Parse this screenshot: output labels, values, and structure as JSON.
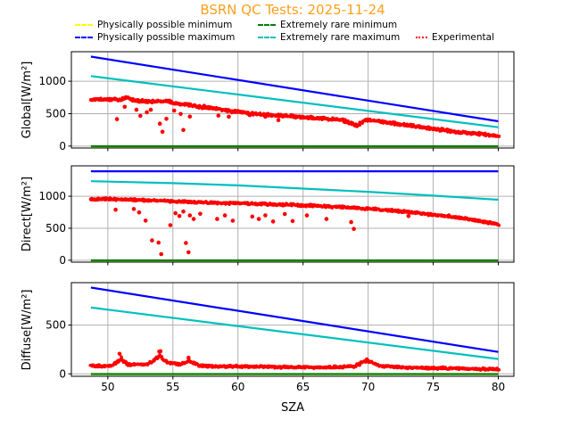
{
  "chart_data": {
    "type": "scatter",
    "title": "BSRN QC Tests: 2025-11-24",
    "title_color": "#ff9f1a",
    "xlabel": "SZA",
    "xlim": [
      47.2,
      81.2
    ],
    "xticks": [
      50,
      55,
      60,
      65,
      70,
      75,
      80
    ],
    "x_data_range": [
      48.7,
      80.0
    ],
    "grid": true,
    "grid_color": "#b0b0b0",
    "legend_position": "upper center, two rows, no frame",
    "legend": [
      {
        "label": "Physically possible minimum",
        "color": "#ffff00",
        "style": "dashed"
      },
      {
        "label": "Physically possible maximum",
        "color": "#0000ff",
        "style": "dashed"
      },
      {
        "label": "Extremely rare minimum",
        "color": "#008000",
        "style": "dashed"
      },
      {
        "label": "Extremely rare maximum",
        "color": "#00bfbf",
        "style": "dashed"
      },
      {
        "label": "Experimental",
        "color": "#ff0000",
        "style": "dotted"
      }
    ],
    "subplots": [
      {
        "name": "global",
        "ylabel": "Global[W/m²]",
        "ylim": [
          -30,
          1455
        ],
        "yticks": [
          0,
          500,
          1000
        ],
        "lines": {
          "physically_possible_minimum": {
            "color": "#ffff00",
            "points": [
              [
                48.7,
                -4
              ],
              [
                80,
                -4
              ]
            ]
          },
          "physically_possible_maximum": {
            "color": "#0000ff",
            "points": [
              [
                48.7,
                1380
              ],
              [
                80,
                382
              ]
            ]
          },
          "extremely_rare_maximum": {
            "color": "#00bfbf",
            "points": [
              [
                48.7,
                1080
              ],
              [
                80,
                290
              ]
            ]
          },
          "extremely_rare_minimum": {
            "color": "#008000",
            "points": [
              [
                48.7,
                -2
              ],
              [
                80,
                -2
              ]
            ]
          }
        },
        "experimental": {
          "color": "#ff0000",
          "band_halfwidth": 26,
          "midline": [
            [
              48.7,
              715
            ],
            [
              50,
              725
            ],
            [
              51,
              715
            ],
            [
              51.5,
              755
            ],
            [
              52,
              705
            ],
            [
              53,
              690
            ],
            [
              54,
              685
            ],
            [
              54.6,
              700
            ],
            [
              55,
              665
            ],
            [
              56,
              645
            ],
            [
              57,
              605
            ],
            [
              58,
              580
            ],
            [
              59,
              555
            ],
            [
              60,
              525
            ],
            [
              61,
              500
            ],
            [
              62,
              487
            ],
            [
              63,
              472
            ],
            [
              64,
              458
            ],
            [
              65,
              445
            ],
            [
              66,
              432
            ],
            [
              67,
              420
            ],
            [
              68,
              400
            ],
            [
              68.6,
              360
            ],
            [
              69.1,
              310
            ],
            [
              69.5,
              370
            ],
            [
              69.9,
              405
            ],
            [
              70.5,
              395
            ],
            [
              71,
              375
            ],
            [
              72,
              348
            ],
            [
              73,
              322
            ],
            [
              74,
              296
            ],
            [
              75,
              268
            ],
            [
              76,
              240
            ],
            [
              77,
              215
            ],
            [
              78,
              196
            ],
            [
              79,
              178
            ],
            [
              80,
              158
            ]
          ],
          "outliers": [
            [
              50.7,
              415
            ],
            [
              51.3,
              605
            ],
            [
              52.2,
              560
            ],
            [
              52.5,
              467
            ],
            [
              53.0,
              522
            ],
            [
              53.3,
              560
            ],
            [
              54.0,
              345
            ],
            [
              54.2,
              220
            ],
            [
              54.5,
              420
            ],
            [
              55.1,
              548
            ],
            [
              55.6,
              495
            ],
            [
              55.8,
              248
            ],
            [
              56.3,
              455
            ],
            [
              57.4,
              620
            ],
            [
              58.5,
              470
            ],
            [
              59.3,
              452
            ],
            [
              60.2,
              528
            ],
            [
              60.9,
              478
            ],
            [
              62.1,
              452
            ],
            [
              63.1,
              400
            ],
            [
              64.1,
              478
            ],
            [
              65.6,
              452
            ]
          ]
        }
      },
      {
        "name": "direct",
        "ylabel": "Direct[W/m²]",
        "ylim": [
          -30,
          1475
        ],
        "yticks": [
          0,
          500,
          1000
        ],
        "lines": {
          "physically_possible_minimum": {
            "color": "#ffff00",
            "points": [
              [
                48.7,
                -4
              ],
              [
                80,
                -4
              ]
            ]
          },
          "physically_possible_maximum": {
            "color": "#0000ff",
            "points": [
              [
                48.7,
                1390
              ],
              [
                80,
                1390
              ]
            ]
          },
          "extremely_rare_maximum": {
            "color": "#00bfbf",
            "points": [
              [
                48.7,
                1235
              ],
              [
                55,
                1205
              ],
              [
                60,
                1170
              ],
              [
                65,
                1120
              ],
              [
                70,
                1070
              ],
              [
                75,
                1010
              ],
              [
                80,
                945
              ]
            ]
          },
          "extremely_rare_minimum": {
            "color": "#008000",
            "points": [
              [
                48.7,
                -2
              ],
              [
                80,
                -2
              ]
            ]
          }
        },
        "experimental": {
          "color": "#ff0000",
          "band_halfwidth": 22,
          "midline": [
            [
              48.7,
              950
            ],
            [
              50,
              955
            ],
            [
              51,
              950
            ],
            [
              52,
              945
            ],
            [
              53,
              935
            ],
            [
              54,
              930
            ],
            [
              55,
              920
            ],
            [
              56,
              915
            ],
            [
              57,
              905
            ],
            [
              58,
              900
            ],
            [
              59,
              895
            ],
            [
              60,
              890
            ],
            [
              61,
              885
            ],
            [
              62,
              878
            ],
            [
              63,
              872
            ],
            [
              64,
              866
            ],
            [
              65,
              858
            ],
            [
              66,
              850
            ],
            [
              67,
              840
            ],
            [
              68,
              830
            ],
            [
              69,
              818
            ],
            [
              70,
              805
            ],
            [
              71,
              790
            ],
            [
              72,
              773
            ],
            [
              73,
              754
            ],
            [
              74,
              734
            ],
            [
              75,
              712
            ],
            [
              76,
              688
            ],
            [
              77,
              662
            ],
            [
              78,
              632
            ],
            [
              79,
              598
            ],
            [
              80,
              560
            ]
          ],
          "outliers": [
            [
              50.6,
              790
            ],
            [
              52.0,
              800
            ],
            [
              52.4,
              748
            ],
            [
              52.9,
              620
            ],
            [
              53.4,
              310
            ],
            [
              53.9,
              275
            ],
            [
              54.1,
              95
            ],
            [
              54.8,
              548
            ],
            [
              55.2,
              735
            ],
            [
              55.5,
              690
            ],
            [
              55.8,
              762
            ],
            [
              56.0,
              270
            ],
            [
              56.2,
              125
            ],
            [
              56.3,
              700
            ],
            [
              56.6,
              645
            ],
            [
              57.1,
              725
            ],
            [
              58.4,
              645
            ],
            [
              59.0,
              700
            ],
            [
              59.6,
              618
            ],
            [
              61.1,
              682
            ],
            [
              61.6,
              645
            ],
            [
              62.1,
              702
            ],
            [
              62.7,
              605
            ],
            [
              63.6,
              722
            ],
            [
              64.2,
              612
            ],
            [
              65.3,
              700
            ],
            [
              66.8,
              645
            ],
            [
              68.7,
              595
            ],
            [
              68.9,
              490
            ],
            [
              73.1,
              690
            ],
            [
              76.2,
              700
            ]
          ]
        }
      },
      {
        "name": "diffuse",
        "ylabel": "Diffuse[W/m²]",
        "ylim": [
          -25,
          935
        ],
        "yticks": [
          0,
          500
        ],
        "lines": {
          "physically_possible_minimum": {
            "color": "#ffff00",
            "points": [
              [
                48.7,
                -4
              ],
              [
                80,
                -4
              ]
            ]
          },
          "physically_possible_maximum": {
            "color": "#0000ff",
            "points": [
              [
                48.7,
                885
              ],
              [
                80,
                225
              ]
            ]
          },
          "extremely_rare_maximum": {
            "color": "#00bfbf",
            "points": [
              [
                48.7,
                680
              ],
              [
                80,
                152
              ]
            ]
          },
          "extremely_rare_minimum": {
            "color": "#008000",
            "points": [
              [
                48.7,
                -2
              ],
              [
                80,
                -2
              ]
            ]
          }
        },
        "experimental": {
          "color": "#ff0000",
          "band_halfwidth": 14,
          "midline": [
            [
              48.7,
              85
            ],
            [
              49.5,
              80
            ],
            [
              50.3,
              85
            ],
            [
              50.8,
              125
            ],
            [
              51.0,
              165
            ],
            [
              51.2,
              130
            ],
            [
              51.6,
              95
            ],
            [
              52,
              90
            ],
            [
              52.5,
              100
            ],
            [
              53,
              95
            ],
            [
              53.4,
              120
            ],
            [
              53.7,
              160
            ],
            [
              54.0,
              185
            ],
            [
              54.3,
              150
            ],
            [
              54.6,
              120
            ],
            [
              55,
              110
            ],
            [
              55.5,
              95
            ],
            [
              56,
              120
            ],
            [
              56.3,
              135
            ],
            [
              56.6,
              110
            ],
            [
              57,
              85
            ],
            [
              58,
              78
            ],
            [
              59,
              75
            ],
            [
              60,
              78
            ],
            [
              61,
              72
            ],
            [
              62,
              75
            ],
            [
              63,
              70
            ],
            [
              64,
              68
            ],
            [
              65,
              70
            ],
            [
              66,
              65
            ],
            [
              67,
              68
            ],
            [
              68,
              72
            ],
            [
              69,
              80
            ],
            [
              69.6,
              120
            ],
            [
              70,
              135
            ],
            [
              70.4,
              110
            ],
            [
              71,
              80
            ],
            [
              72,
              70
            ],
            [
              73,
              65
            ],
            [
              74,
              62
            ],
            [
              75,
              60
            ],
            [
              76,
              58
            ],
            [
              77,
              55
            ],
            [
              78,
              52
            ],
            [
              79,
              50
            ],
            [
              80,
              48
            ]
          ],
          "outliers": [
            [
              50.9,
              205
            ],
            [
              53.95,
              228
            ],
            [
              54.05,
              232
            ],
            [
              56.2,
              165
            ],
            [
              69.9,
              148
            ]
          ]
        }
      }
    ]
  }
}
